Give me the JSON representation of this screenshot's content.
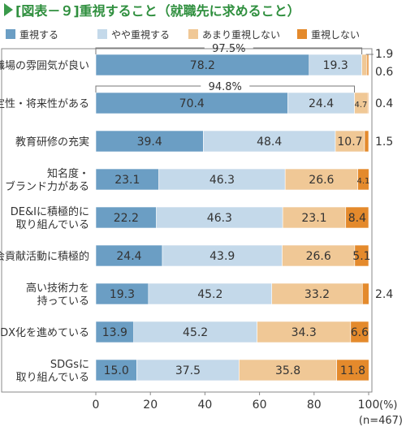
{
  "chart_data": {
    "type": "bar",
    "orientation": "horizontal",
    "stacked": true,
    "title": "[図表－９]重視すること（就職先に求めること）",
    "categories": [
      "職場の雰囲気が良い",
      "安定性・将来性がある",
      "教育研修の充実",
      "知名度・ブランド力がある",
      "DE&Iに積極的に取り組んでいる",
      "社会貢献活動に積極的",
      "高い技術力を持っている",
      "DX化を進めている",
      "SDGsに取り組んでいる"
    ],
    "category_lines": [
      [
        "職場の雰囲気が良い"
      ],
      [
        "安定性・将来性がある"
      ],
      [
        "教育研修の充実"
      ],
      [
        "知名度・",
        "ブランド力がある"
      ],
      [
        "DE&Iに積極的に",
        "取り組んでいる"
      ],
      [
        "社会貢献活動に積極的"
      ],
      [
        "高い技術力を",
        "持っている"
      ],
      [
        "DX化を進めている"
      ],
      [
        "SDGsに",
        "取り組んでいる"
      ]
    ],
    "series": [
      {
        "name": "重視する",
        "color": "#6b9ec4",
        "values": [
          78.2,
          70.4,
          39.4,
          23.1,
          22.2,
          24.4,
          19.3,
          13.9,
          15.0
        ]
      },
      {
        "name": "やや重視する",
        "color": "#c4d9ea",
        "values": [
          19.3,
          24.4,
          48.4,
          46.3,
          46.3,
          43.9,
          45.2,
          45.2,
          37.5
        ]
      },
      {
        "name": "あまり重視しない",
        "color": "#f0c896",
        "values": [
          1.9,
          4.7,
          10.7,
          26.6,
          23.1,
          26.6,
          33.2,
          34.3,
          35.8
        ]
      },
      {
        "name": "重視しない",
        "color": "#e48a2c",
        "values": [
          0.6,
          0.4,
          1.5,
          4.1,
          8.4,
          5.1,
          2.4,
          6.6,
          11.8
        ]
      }
    ],
    "value_labels": [
      [
        "78.2",
        "19.3",
        "1.9",
        "0.6"
      ],
      [
        "70.4",
        "24.4",
        "4.7",
        "0.4"
      ],
      [
        "39.4",
        "48.4",
        "10.7",
        "1.5"
      ],
      [
        "23.1",
        "46.3",
        "26.6",
        "4.1"
      ],
      [
        "22.2",
        "46.3",
        "23.1",
        "8.4"
      ],
      [
        "24.4",
        "43.9",
        "26.6",
        "5.1"
      ],
      [
        "19.3",
        "45.2",
        "33.2",
        "2.4"
      ],
      [
        "13.9",
        "45.2",
        "34.3",
        "6.6"
      ],
      [
        "15.0",
        "37.5",
        "35.8",
        "11.8"
      ]
    ],
    "bracket_annotations": [
      {
        "row": 0,
        "label": "97.5%"
      },
      {
        "row": 1,
        "label": "94.8%"
      }
    ],
    "x_ticks": [
      "0",
      "20",
      "40",
      "60",
      "80",
      "100"
    ],
    "xlim": [
      0,
      100
    ],
    "x_unit": "(%)",
    "n_label": "(n=467)",
    "legend_position": "top",
    "grid": false
  }
}
